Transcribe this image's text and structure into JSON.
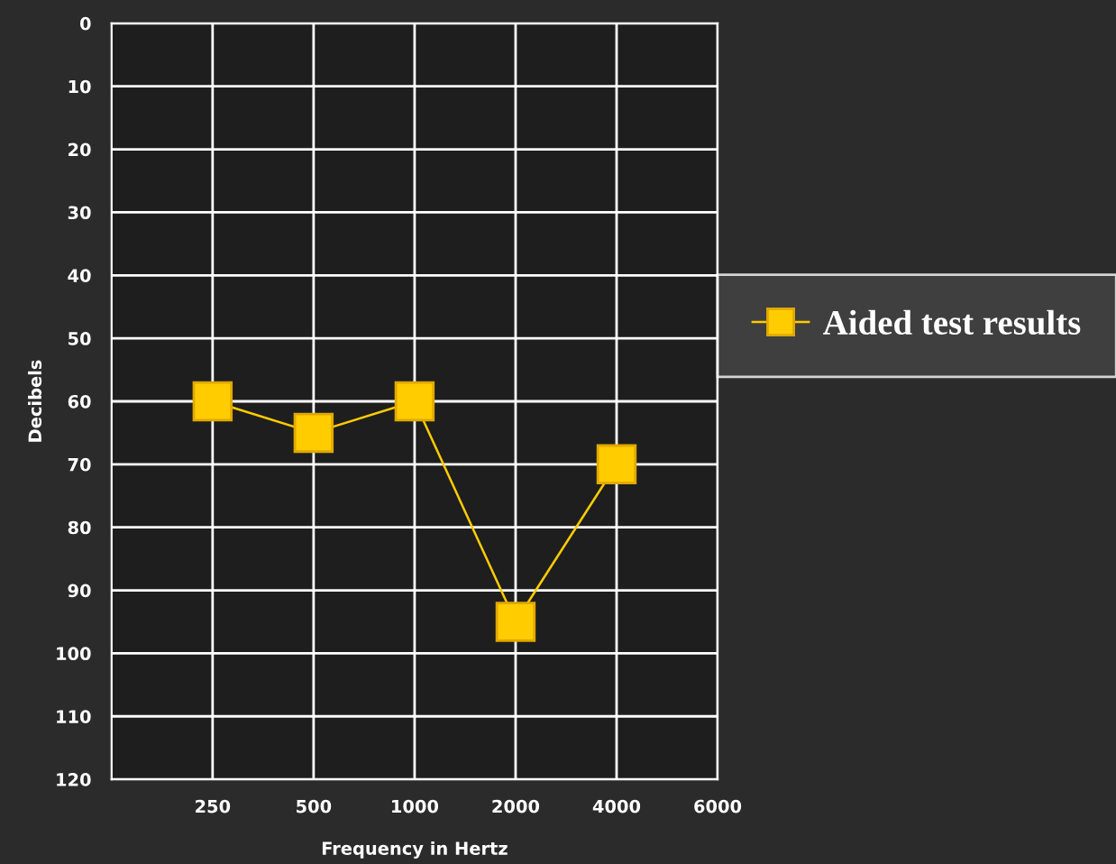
{
  "chart_data": {
    "type": "line",
    "xlabel": "Frequency in Hertz",
    "ylabel": "Decibels",
    "categories": [
      "250",
      "500",
      "1000",
      "2000",
      "4000",
      "6000"
    ],
    "series": [
      {
        "name": "Aided test results",
        "color": "#ffcc00",
        "values": [
          60,
          65,
          60,
          95,
          70,
          null
        ]
      }
    ],
    "ylim": [
      120,
      0
    ],
    "yticks": [
      0,
      10,
      20,
      30,
      40,
      50,
      60,
      70,
      80,
      90,
      100,
      110,
      120
    ],
    "grid": true,
    "legend": "right",
    "marker": "square",
    "line_style": "solid"
  }
}
